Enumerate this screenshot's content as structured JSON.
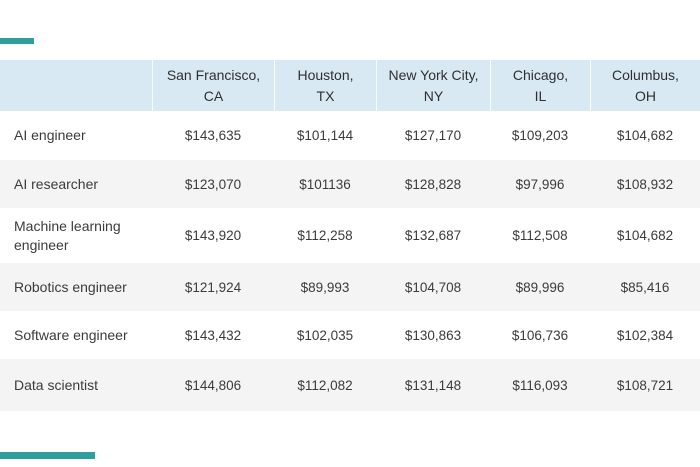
{
  "chart_data": {
    "type": "table",
    "columns": [
      {
        "city": "San Francisco,",
        "state": "CA"
      },
      {
        "city": "Houston,",
        "state": "TX"
      },
      {
        "city": "New York City,",
        "state": "NY"
      },
      {
        "city": "Chicago,",
        "state": "IL"
      },
      {
        "city": "Columbus,",
        "state": "OH"
      }
    ],
    "rows": [
      {
        "label": "AI engineer",
        "values": [
          "$143,635",
          "$101,144",
          "$127,170",
          "$109,203",
          "$104,682"
        ]
      },
      {
        "label": "AI researcher",
        "values": [
          "$123,070",
          "$101136",
          "$128,828",
          "$97,996",
          "$108,932"
        ]
      },
      {
        "label": "Machine learning engineer",
        "values": [
          "$143,920",
          "$112,258",
          "$132,687",
          "$112,508",
          "$104,682"
        ]
      },
      {
        "label": "Robotics engineer",
        "values": [
          "$121,924",
          "$89,993",
          "$104,708",
          "$89,996",
          "$85,416"
        ]
      },
      {
        "label": "Software engineer",
        "values": [
          "$143,432",
          "$102,035",
          "$130,863",
          "$106,736",
          "$102,384"
        ]
      },
      {
        "label": "Data scientist",
        "values": [
          "$144,806",
          "$112,082",
          "$131,148",
          "$116,093",
          "$108,721"
        ]
      }
    ],
    "layout": {
      "grid": false,
      "legend": "none",
      "header_bg": "#d8e9f3",
      "stripe_bg": "#f4f4f4",
      "text_color": "#3b3b3b",
      "accent_color": "#2f9e9c",
      "zebra_striping": "even rows gray"
    }
  }
}
